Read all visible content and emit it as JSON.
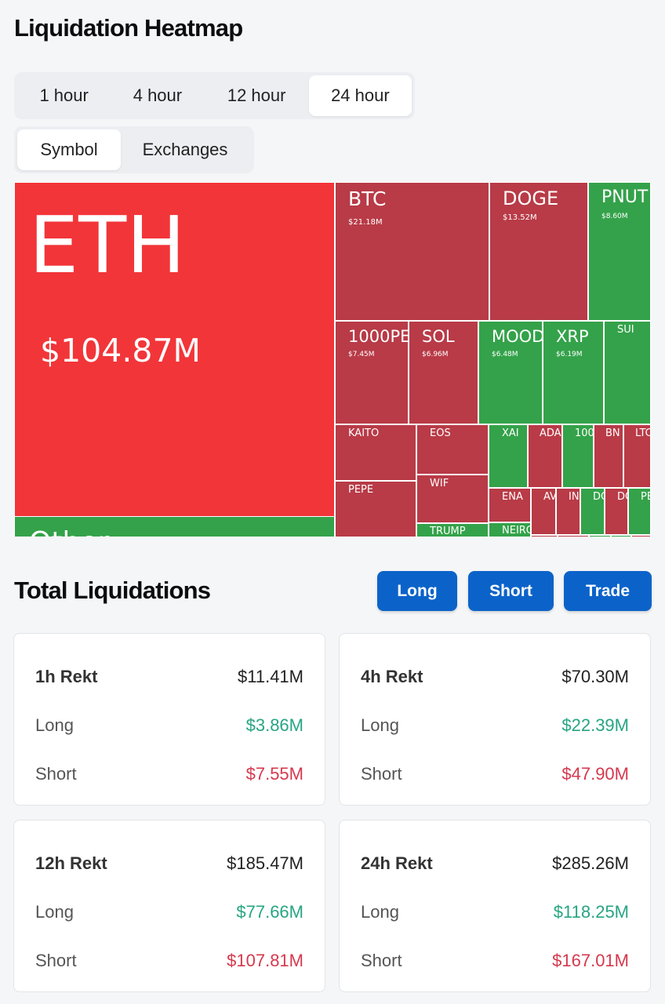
{
  "title": "Liquidation Heatmap",
  "timeframes": [
    "1 hour",
    "4 hour",
    "12 hour",
    "24 hour"
  ],
  "active_timeframe": "24 hour",
  "group_tabs": [
    "Symbol",
    "Exchanges"
  ],
  "active_group": "Symbol",
  "heatmap": {
    "eth": {
      "name": "ETH",
      "value": "$104.87M"
    },
    "other": {
      "name": "Other"
    },
    "btc": {
      "name": "BTC",
      "value": "$21.18M"
    },
    "doge": {
      "name": "DOGE",
      "value": "$13.52M"
    },
    "pnut": {
      "name": "PNUT",
      "value": "$8.60M"
    },
    "pepe1000": {
      "name": "1000PE",
      "value": "$7.45M"
    },
    "sol": {
      "name": "SOL",
      "value": "$6.96M"
    },
    "mood": {
      "name": "MOOD",
      "value": "$6.48M"
    },
    "xrp": {
      "name": "XRP",
      "value": "$6.19M"
    },
    "sui": {
      "name": "SUI"
    },
    "kaito": {
      "name": "KAITO"
    },
    "eos": {
      "name": "EOS"
    },
    "pepe": {
      "name": "PEPE"
    },
    "wif": {
      "name": "WIF"
    },
    "trump": {
      "name": "TRUMP"
    },
    "xai": {
      "name": "XAI"
    },
    "ada": {
      "name": "ADA"
    },
    "t100": {
      "name": "100"
    },
    "bn": {
      "name": "BN"
    },
    "ltc": {
      "name": "LTC"
    },
    "ena": {
      "name": "ENA"
    },
    "av": {
      "name": "AV"
    },
    "in": {
      "name": "IN"
    },
    "do1": {
      "name": "DO"
    },
    "do2": {
      "name": "DO"
    },
    "pe": {
      "name": "PE"
    },
    "neiro": {
      "name": "NEIRO"
    }
  },
  "total_title": "Total Liquidations",
  "buttons": {
    "long": "Long",
    "short": "Short",
    "trade": "Trade"
  },
  "cards": [
    {
      "label": "1h Rekt",
      "total": "$11.41M",
      "long_label": "Long",
      "long": "$3.86M",
      "short_label": "Short",
      "short": "$7.55M"
    },
    {
      "label": "4h Rekt",
      "total": "$70.30M",
      "long_label": "Long",
      "long": "$22.39M",
      "short_label": "Short",
      "short": "$47.90M"
    },
    {
      "label": "12h Rekt",
      "total": "$185.47M",
      "long_label": "Long",
      "long": "$77.66M",
      "short_label": "Short",
      "short": "$107.81M"
    },
    {
      "label": "24h Rekt",
      "total": "$285.26M",
      "long_label": "Long",
      "long": "$118.25M",
      "short_label": "Short",
      "short": "$167.01M"
    }
  ],
  "colors": {
    "long": "#27a583",
    "short": "#d6384d",
    "button": "#0b63c9",
    "heat_red": "#b83b47",
    "heat_bright_red": "#f23539",
    "heat_green": "#34a24a"
  }
}
